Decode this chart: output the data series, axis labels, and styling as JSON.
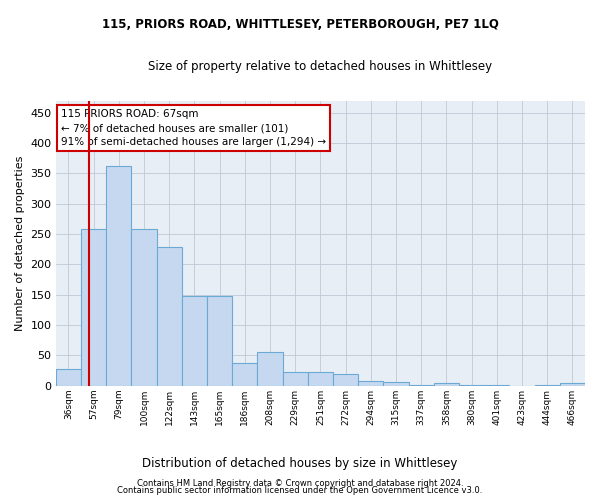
{
  "title": "115, PRIORS ROAD, WHITTLESEY, PETERBOROUGH, PE7 1LQ",
  "subtitle": "Size of property relative to detached houses in Whittlesey",
  "xlabel": "Distribution of detached houses by size in Whittlesey",
  "ylabel": "Number of detached properties",
  "bar_labels": [
    "36sqm",
    "57sqm",
    "79sqm",
    "100sqm",
    "122sqm",
    "143sqm",
    "165sqm",
    "186sqm",
    "208sqm",
    "229sqm",
    "251sqm",
    "272sqm",
    "294sqm",
    "315sqm",
    "337sqm",
    "358sqm",
    "380sqm",
    "401sqm",
    "423sqm",
    "444sqm",
    "466sqm"
  ],
  "bar_values": [
    28,
    258,
    362,
    258,
    228,
    148,
    148,
    38,
    55,
    22,
    22,
    20,
    8,
    7,
    1,
    4,
    1,
    1,
    0,
    1,
    4
  ],
  "bar_color": "#c5d8f0",
  "bar_edge_color": "#6aaad4",
  "vline_x_index": 1,
  "vline_color": "#cc0000",
  "ylim": [
    0,
    470
  ],
  "yticks": [
    0,
    50,
    100,
    150,
    200,
    250,
    300,
    350,
    400,
    450
  ],
  "annotation_line1": "115 PRIORS ROAD: 67sqm",
  "annotation_line2": "← 7% of detached houses are smaller (101)",
  "annotation_line3": "91% of semi-detached houses are larger (1,294) →",
  "annotation_box_color": "#ffffff",
  "annotation_box_edge": "#cc0000",
  "bg_color": "#e8eef5",
  "fig_color": "#ffffff",
  "grid_color": "#c0c8d8",
  "footer1": "Contains HM Land Registry data © Crown copyright and database right 2024.",
  "footer2": "Contains public sector information licensed under the Open Government Licence v3.0."
}
